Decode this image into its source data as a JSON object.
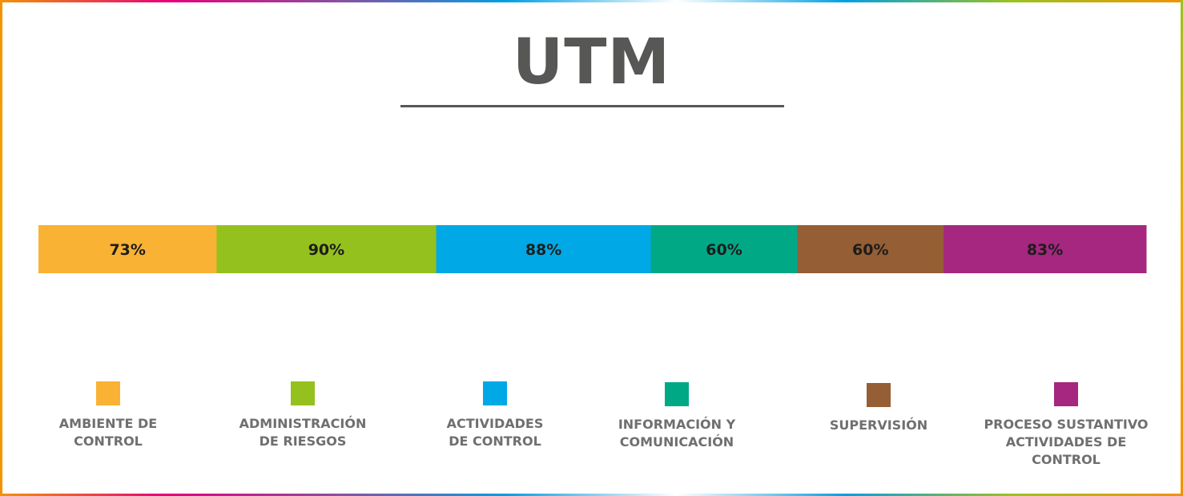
{
  "title": "UTM",
  "chart_data": {
    "type": "bar",
    "orientation": "horizontal-stacked",
    "categories": [
      "AMBIENTE DE\nCONTROL",
      "ADMINISTRACIÓN\nDE RIESGOS",
      "ACTIVIDADES\nDE CONTROL",
      "INFORMACIÓN Y\nCOMUNICACIÓN",
      "SUPERVISIÓN",
      "PROCESO SUSTANTIVO\nACTIVIDADES DE\nCONTROL"
    ],
    "values": [
      73,
      90,
      88,
      60,
      60,
      83
    ],
    "data_labels": [
      "73%",
      "90%",
      "88%",
      "60%",
      "60%",
      "83%"
    ],
    "colors": [
      "#f9b234",
      "#95c11f",
      "#00a8e6",
      "#00a886",
      "#955e35",
      "#a5277f"
    ],
    "legend_position": "bottom",
    "grid": false
  }
}
